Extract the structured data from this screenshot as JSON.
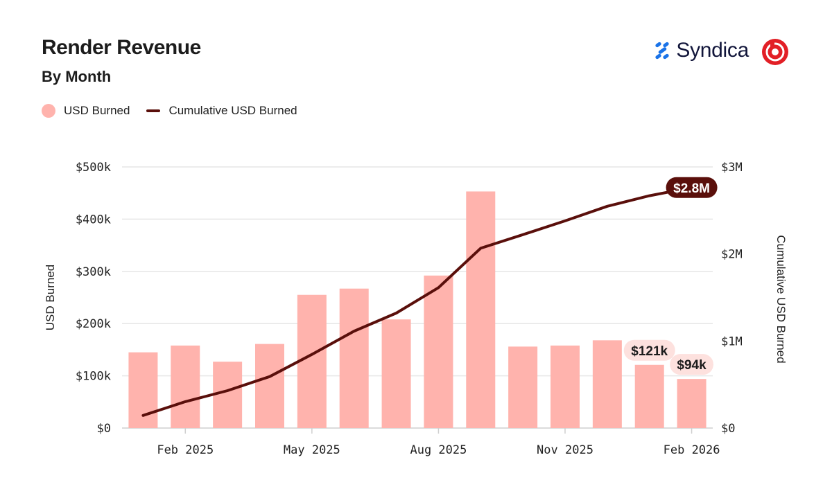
{
  "header": {
    "title": "Render Revenue",
    "subtitle": "By Month"
  },
  "legend": {
    "bars_label": "USD Burned",
    "line_label": "Cumulative USD Burned"
  },
  "brand": {
    "name": "Syndica"
  },
  "colors": {
    "bar": "#ffb3ad",
    "line": "#5a0f0b",
    "grid": "#e6e6e6",
    "brand_blue": "#1a73e8",
    "render_red": "#e21f26"
  },
  "chart_data": {
    "type": "bar",
    "title": "Render Revenue",
    "subtitle": "By Month",
    "categories": [
      "Jan 2025",
      "Feb 2025",
      "Mar 2025",
      "Apr 2025",
      "May 2025",
      "Jun 2025",
      "Jul 2025",
      "Aug 2025",
      "Sep 2025",
      "Oct 2025",
      "Nov 2025",
      "Dec 2025",
      "Jan 2026",
      "Feb 2026"
    ],
    "x_tick_labels": [
      {
        "category_index": 1,
        "label": "Feb 2025"
      },
      {
        "category_index": 4,
        "label": "May 2025"
      },
      {
        "category_index": 7,
        "label": "Aug 2025"
      },
      {
        "category_index": 10,
        "label": "Nov 2025"
      },
      {
        "category_index": 13,
        "label": "Feb 2026"
      }
    ],
    "series": [
      {
        "name": "USD Burned",
        "type": "bar",
        "axis": "left",
        "values": [
          145000,
          158000,
          127000,
          161000,
          255000,
          267000,
          208000,
          292000,
          453000,
          156000,
          158000,
          168000,
          121000,
          94000
        ]
      },
      {
        "name": "Cumulative USD Burned",
        "type": "line",
        "axis": "right",
        "values": [
          145000,
          303000,
          430000,
          591000,
          846000,
          1113000,
          1321000,
          1613000,
          2066000,
          2222000,
          2380000,
          2548000,
          2669000,
          2763000
        ]
      }
    ],
    "ylabel": "USD Burned",
    "y2label": "Cumulative USD Burned",
    "ylim": [
      0,
      500000
    ],
    "y2lim": [
      0,
      3000000
    ],
    "yticks": [
      {
        "value": 0,
        "label": "$0"
      },
      {
        "value": 100000,
        "label": "$100k"
      },
      {
        "value": 200000,
        "label": "$200k"
      },
      {
        "value": 300000,
        "label": "$300k"
      },
      {
        "value": 400000,
        "label": "$400k"
      },
      {
        "value": 500000,
        "label": "$500k"
      }
    ],
    "y2ticks": [
      {
        "value": 0,
        "label": "$0"
      },
      {
        "value": 1000000,
        "label": "$1M"
      },
      {
        "value": 2000000,
        "label": "$2M"
      },
      {
        "value": 3000000,
        "label": "$3M"
      }
    ],
    "annotations": [
      {
        "series": "USD Burned",
        "category_index": 12,
        "label": "$121k"
      },
      {
        "series": "USD Burned",
        "category_index": 13,
        "label": "$94k"
      },
      {
        "series": "Cumulative USD Burned",
        "category_index": 13,
        "label": "$2.8M"
      }
    ],
    "grid": true,
    "legend_position": "top-left"
  }
}
